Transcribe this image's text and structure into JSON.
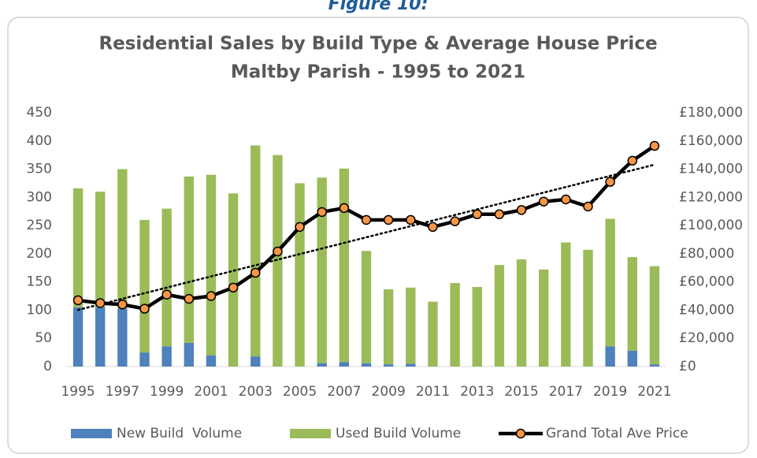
{
  "figure_label": "Figure 10:",
  "chart_data": {
    "type": "combo",
    "title": "Residential Sales by Build Type & Average House Price",
    "subtitle": "Maltby Parish - 1995 to 2021",
    "categories": [
      "1995",
      null,
      "1997",
      null,
      "1999",
      null,
      "2001",
      null,
      "2003",
      null,
      "2005",
      null,
      "2007",
      null,
      "2009",
      null,
      "2011",
      null,
      "2013",
      null,
      "2015",
      null,
      "2017",
      null,
      "2019",
      null,
      "2021"
    ],
    "series": [
      {
        "name": "New Build  Volume",
        "type": "bar",
        "stacked": true,
        "color": "#4f81bd",
        "values": [
          105,
          105,
          103,
          25,
          36,
          42,
          20,
          0,
          18,
          0,
          0,
          6,
          8,
          6,
          4,
          5,
          0,
          0,
          0,
          0,
          0,
          0,
          0,
          0,
          36,
          28,
          4
        ]
      },
      {
        "name": "Used Build Volume",
        "type": "bar",
        "stacked": true,
        "color": "#9bbb59",
        "values": [
          211,
          205,
          247,
          235,
          244,
          295,
          320,
          307,
          374,
          375,
          325,
          329,
          343,
          199,
          133,
          135,
          115,
          148,
          141,
          180,
          190,
          172,
          220,
          207,
          226,
          166,
          174
        ]
      },
      {
        "name": "Grand Total Ave Price",
        "type": "line",
        "axis": "y2",
        "color": "#000000",
        "marker_color": "#f79646",
        "trendline": true,
        "values": [
          47000,
          45000,
          44000,
          41000,
          51000,
          48000,
          50000,
          56000,
          66500,
          81600,
          99000,
          109600,
          112400,
          104000,
          104000,
          104000,
          99000,
          103000,
          108000,
          108000,
          111000,
          117000,
          118500,
          113500,
          131000,
          146000,
          156500
        ]
      }
    ],
    "ylim": [
      0,
      450
    ],
    "yticks": [
      0,
      50,
      100,
      150,
      200,
      250,
      300,
      350,
      400,
      450
    ],
    "y2lim": [
      0,
      180000
    ],
    "y2ticks": [
      {
        "value": 0,
        "label": "£0"
      },
      {
        "value": 20000,
        "label": "£20,000"
      },
      {
        "value": 40000,
        "label": "£40,000"
      },
      {
        "value": 60000,
        "label": "£60,000"
      },
      {
        "value": 80000,
        "label": "£80,000"
      },
      {
        "value": 100000,
        "label": "£100,000"
      },
      {
        "value": 120000,
        "label": "£120,000"
      },
      {
        "value": 140000,
        "label": "£140,000"
      },
      {
        "value": 160000,
        "label": "£160,000"
      },
      {
        "value": 180000,
        "label": "£180,000"
      }
    ],
    "grid": false,
    "legend": "bottom"
  }
}
